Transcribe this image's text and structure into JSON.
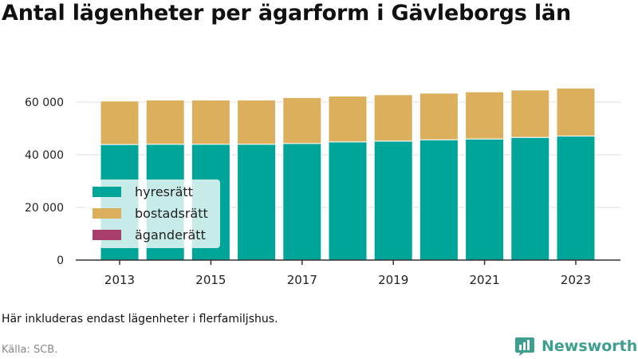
{
  "title": "Antal lägenheter per ägarform i Gävleborgs län",
  "note": "Här inkluderas endast lägenheter i flerfamiljshus.",
  "source": "Källa: SCB.",
  "brand": {
    "name": "Newsworthy",
    "color": "#3f9f8f",
    "icon": "newsworthy-logo-icon"
  },
  "chart_data": {
    "type": "bar",
    "stacked": true,
    "title": "Antal lägenheter per ägarform i Gävleborgs län",
    "xlabel": "",
    "ylabel": "",
    "categories": [
      "2013",
      "2014",
      "2015",
      "2016",
      "2017",
      "2018",
      "2019",
      "2020",
      "2021",
      "2022",
      "2023"
    ],
    "x_tick_labels": [
      "2013",
      "2015",
      "2017",
      "2019",
      "2021",
      "2023"
    ],
    "y_ticks": [
      0,
      20000,
      40000,
      60000
    ],
    "y_tick_labels": [
      "0",
      "20 000",
      "40 000",
      "60 000"
    ],
    "ylim": [
      0,
      70000
    ],
    "grid": true,
    "legend_position": "bottom-left",
    "series": [
      {
        "name": "hyresrätt",
        "color": "#00a59a",
        "values": [
          43900,
          44000,
          44000,
          44000,
          44300,
          44900,
          45200,
          45700,
          46000,
          46600,
          47100
        ]
      },
      {
        "name": "bostadsrätt",
        "color": "#dbaf5c",
        "values": [
          16500,
          16800,
          16800,
          16800,
          17400,
          17400,
          17600,
          17700,
          17900,
          18000,
          18200
        ]
      },
      {
        "name": "äganderätt",
        "color": "#a83f6b",
        "values": [
          0,
          0,
          0,
          0,
          0,
          0,
          0,
          0,
          0,
          0,
          0
        ]
      }
    ]
  }
}
